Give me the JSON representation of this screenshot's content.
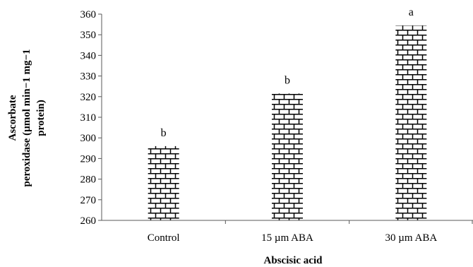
{
  "chart_data": {
    "type": "bar",
    "categories": [
      "Control",
      "15 µm ABA",
      "30 µm ABA"
    ],
    "values": [
      296,
      321.5,
      354.5
    ],
    "data_labels": [
      "b",
      "b",
      "a"
    ],
    "xlabel": "Abscisic acid",
    "ylabel_lines": [
      "Ascorbate",
      "peroxidase (µmol min−1 mg−1",
      "protein)"
    ],
    "ylim": [
      260,
      360
    ],
    "yticks": [
      260,
      270,
      280,
      290,
      300,
      310,
      320,
      330,
      340,
      350,
      360
    ],
    "grid": false,
    "legend": "none",
    "bar_pattern": "brick",
    "colors": {
      "bar_fill": "#ffffff",
      "pattern": "#000000",
      "axis": "#595959"
    }
  }
}
